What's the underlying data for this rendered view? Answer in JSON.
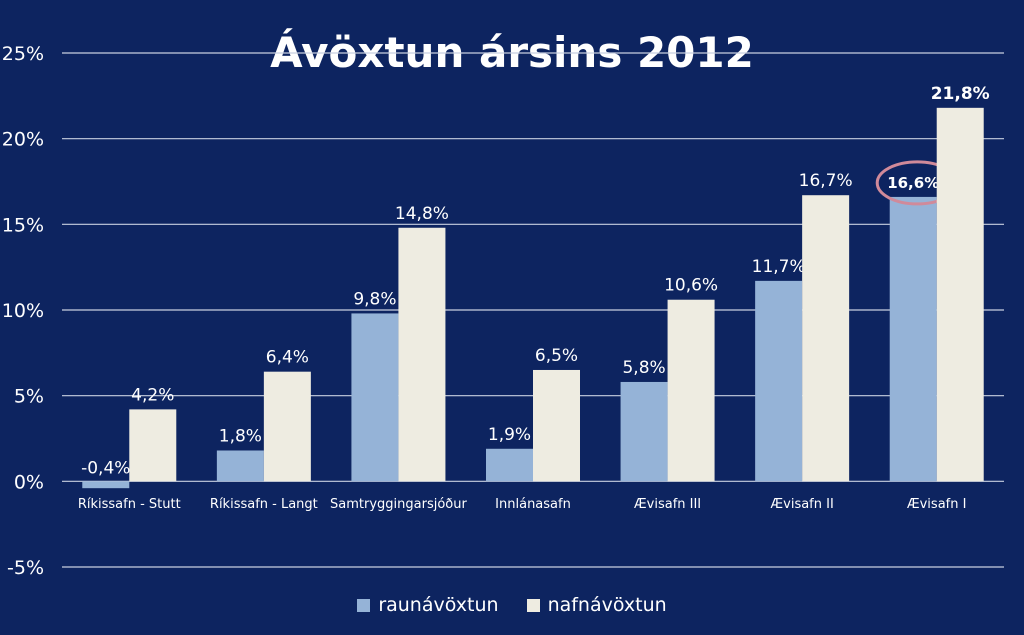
{
  "chart_data": {
    "type": "bar",
    "title": "Ávöxtun ársins 2012",
    "categories": [
      "Ríkissafn - Stutt",
      "Ríkissafn - Langt",
      "Samtryggingarsjóður",
      "Innlánasafn",
      "Ævisafn III",
      "Ævisafn II",
      "Ævisafn I"
    ],
    "series": [
      {
        "name": "raunávöxtun",
        "color": "#95b3d7",
        "values": [
          -0.4,
          1.8,
          9.8,
          1.9,
          5.8,
          11.7,
          16.6
        ],
        "labels": [
          "-0,4%",
          "1,8%",
          "9,8%",
          "1,9%",
          "5,8%",
          "11,7%",
          "16,6%"
        ]
      },
      {
        "name": "nafnávöxtun",
        "color": "#eeece1",
        "values": [
          4.2,
          6.4,
          14.8,
          6.5,
          10.6,
          16.7,
          21.8
        ],
        "labels": [
          "4,2%",
          "6,4%",
          "14,8%",
          "6,5%",
          "10,6%",
          "16,7%",
          "21,8%"
        ]
      }
    ],
    "y_ticks": [
      -5,
      0,
      5,
      10,
      15,
      20,
      25
    ],
    "y_tick_labels": [
      "-5%",
      "0%",
      "5%",
      "10%",
      "15%",
      "20%",
      "25%"
    ],
    "ylim": [
      -5,
      25
    ],
    "grid": true,
    "legend_position": "bottom",
    "annotation": {
      "label": "16,6%",
      "note": "circled",
      "color": "#d08a9a"
    },
    "colors": {
      "background": "#0d2460",
      "grid": "#c8cfe0",
      "text": "#ffffff"
    }
  }
}
